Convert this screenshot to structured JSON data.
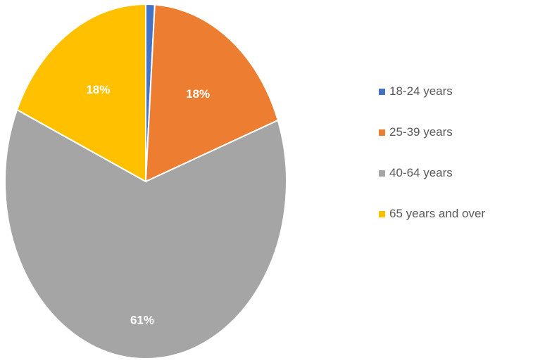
{
  "chart_data": {
    "type": "pie",
    "categories": [
      "18-24 years",
      "25-39 years",
      "40-64 years",
      "65 years and over"
    ],
    "values": [
      1,
      18,
      61,
      18
    ],
    "labels": [
      "",
      "18%",
      "61%",
      "18%"
    ],
    "colors": [
      "#4472c4",
      "#ed7d31",
      "#a5a5a5",
      "#ffc000"
    ],
    "legend_position": "right"
  }
}
